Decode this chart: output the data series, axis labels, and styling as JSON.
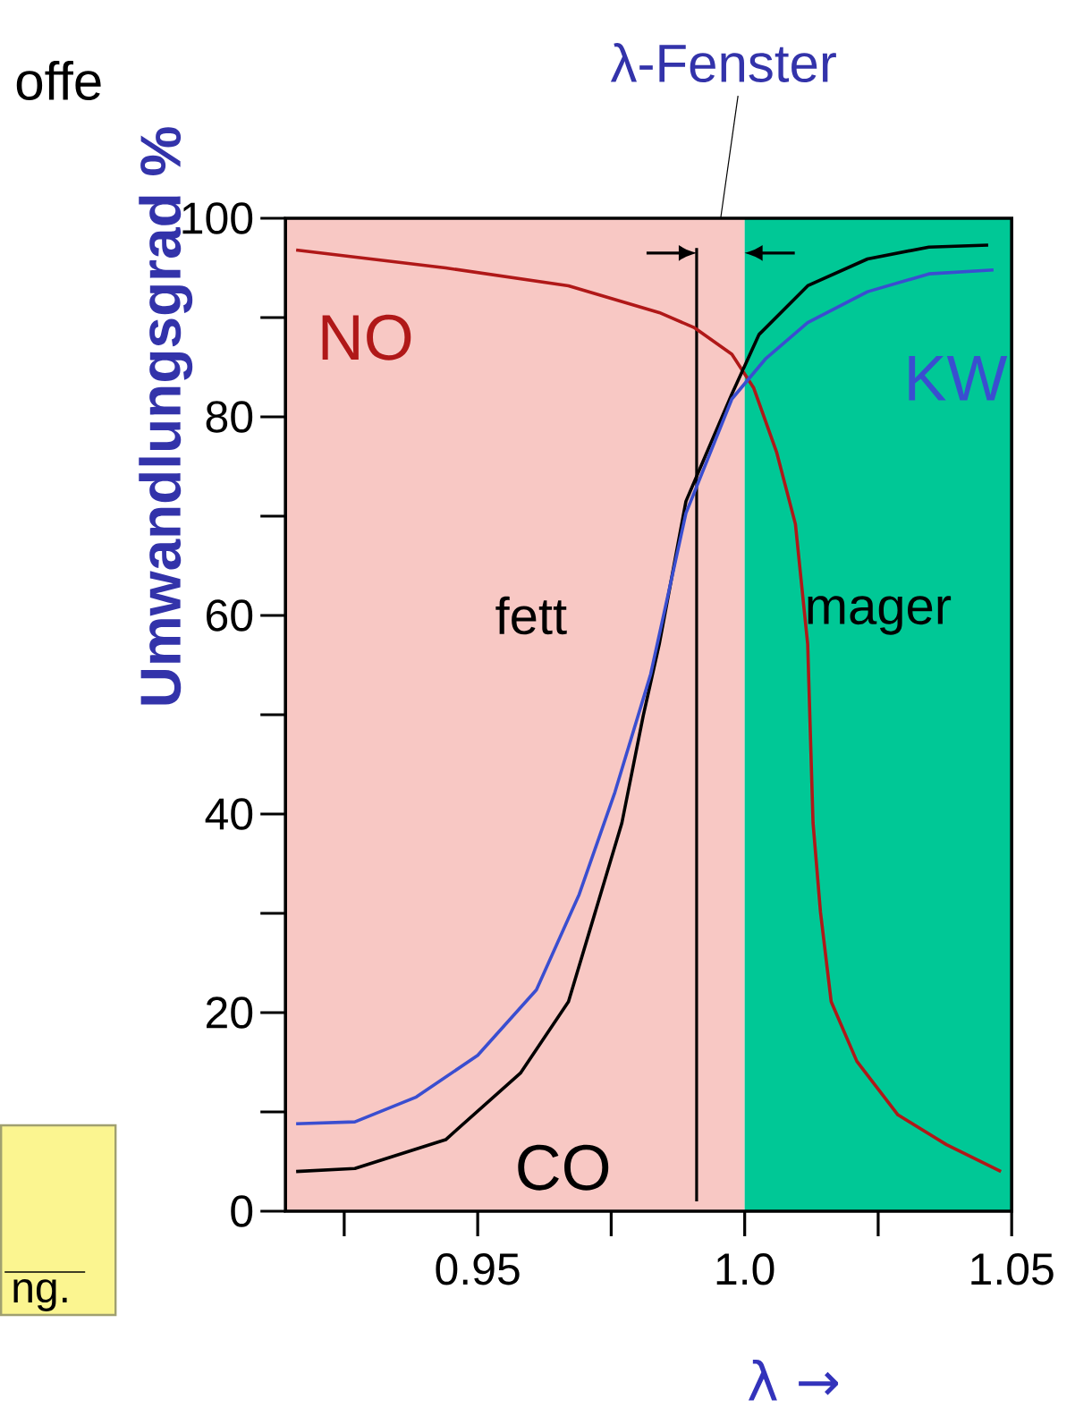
{
  "chart_data": {
    "type": "line",
    "ylabel": "Umwandlungsgrad %",
    "xlabel": "λ →",
    "annotations": [
      "λ-Fenster",
      "offe",
      "ng."
    ],
    "xlim": [
      0.914,
      1.05
    ],
    "xticks": [
      {
        "value": 0.925,
        "label": null
      },
      0.95,
      {
        "value": 0.975,
        "label": null
      },
      {
        "value": 1.0,
        "label": "1.0"
      },
      {
        "value": 1.025,
        "label": null
      },
      1.05
    ],
    "ylim": [
      0,
      100
    ],
    "yticks": [
      0,
      {
        "value": 10,
        "label": null
      },
      20,
      {
        "value": 30,
        "label": null
      },
      40,
      {
        "value": 50,
        "label": null
      },
      60,
      {
        "value": 70,
        "label": null
      },
      80,
      {
        "value": 90,
        "label": null
      },
      100
    ],
    "grid": false,
    "marker": "none",
    "line_style": "solid",
    "bands": [
      {
        "axis": "x",
        "from": 0.914,
        "to": 1.0,
        "label": "fett",
        "color": "#f8c8c4"
      },
      {
        "axis": "x",
        "from": 1.0,
        "to": 1.05,
        "label": "mager",
        "color": "#00c896"
      }
    ],
    "ref_lines": [
      {
        "axis": "x",
        "value": 0.991,
        "color": "#000000"
      }
    ],
    "series": [
      {
        "name": "NO",
        "color": "#b01818",
        "x": [
          0.916,
          0.944,
          0.967,
          0.984,
          0.9905,
          0.9976,
          1.0017,
          1.006,
          1.0095,
          1.011,
          1.0118,
          1.0128,
          1.0142,
          1.0162,
          1.021,
          1.0287,
          1.0378,
          1.048
        ],
        "values": [
          96.8,
          95,
          93.2,
          90.5,
          89,
          86.3,
          82.9,
          76.4,
          69.2,
          61.3,
          57.1,
          39.1,
          30.1,
          21.1,
          15.1,
          9.7,
          6.7,
          4.0
        ]
      },
      {
        "name": "CO",
        "color": "#000000",
        "x": [
          0.916,
          0.927,
          0.944,
          0.958,
          0.967,
          0.972,
          0.977,
          0.981,
          0.984,
          0.989,
          0.9976,
          1.0027,
          1.0118,
          1.023,
          1.0345,
          1.0456
        ],
        "values": [
          4.0,
          4.3,
          7.2,
          13.9,
          21.1,
          30.1,
          39.1,
          49.9,
          57.1,
          71.5,
          82.3,
          88.3,
          93.2,
          95.9,
          97.1,
          97.3
        ]
      },
      {
        "name": "KW",
        "color": "#3a4ed0",
        "x": [
          0.916,
          0.927,
          0.9385,
          0.95,
          0.961,
          0.969,
          0.9757,
          0.9824,
          0.989,
          0.9976,
          1.004,
          1.0118,
          1.023,
          1.0345,
          1.0466
        ],
        "values": [
          8.8,
          9.0,
          11.5,
          15.7,
          22.3,
          31.9,
          42.2,
          54.1,
          70.3,
          81.8,
          85.9,
          89.5,
          92.6,
          94.4,
          94.8
        ]
      }
    ]
  }
}
